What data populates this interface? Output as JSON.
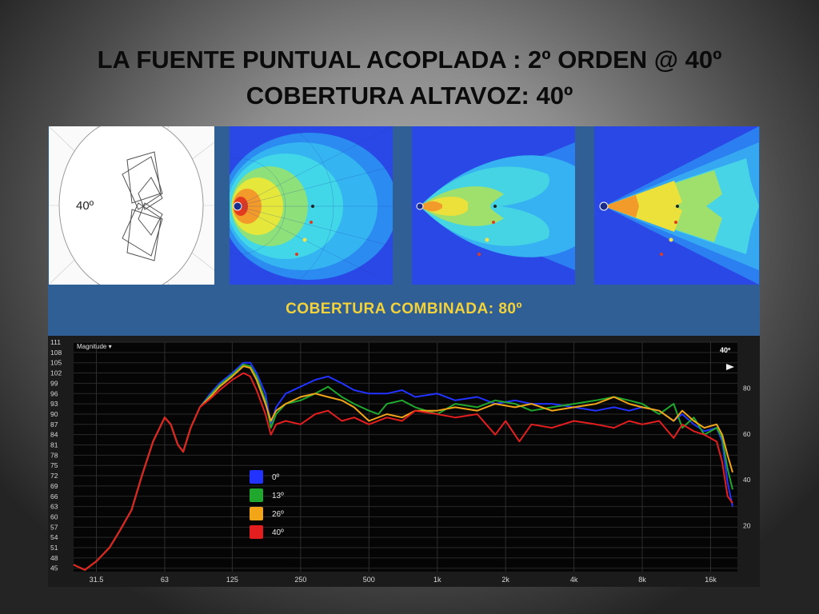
{
  "slide": {
    "title_line1": "LA FUENTE PUNTUAL ACOPLADA : 2º ORDEN @ 40º",
    "title_line2": "COBERTURA ALTAVOZ: 40º",
    "diagram_angle_label": "40º",
    "combined_coverage_label": "COBERTURA COMBINADA: 80º",
    "colors": {
      "panel_bg": "#2f5f94",
      "combined_text": "#f3d23a",
      "title_text": "#0b0b0b"
    }
  },
  "chart_data": {
    "type": "line",
    "title": "",
    "panel_label": "Magnitude ▾",
    "corner_label": "40º",
    "xlabel": "",
    "ylabel": "",
    "x_scale": "log",
    "xlim": [
      25,
      21000
    ],
    "ylim": [
      44,
      111
    ],
    "x_ticks": [
      "31.5",
      "63",
      "125",
      "250",
      "500",
      "1k",
      "2k",
      "4k",
      "8k",
      "16k"
    ],
    "x_tick_values": [
      31.5,
      63,
      125,
      250,
      500,
      1000,
      2000,
      4000,
      8000,
      16000
    ],
    "y_ticks": [
      "111",
      "108",
      "105",
      "102",
      "99",
      "96",
      "93",
      "90",
      "87",
      "84",
      "81",
      "78",
      "75",
      "72",
      "69",
      "66",
      "63",
      "60",
      "57",
      "54",
      "51",
      "48",
      "45"
    ],
    "y_tick_values": [
      111,
      108,
      105,
      102,
      99,
      96,
      93,
      90,
      87,
      84,
      81,
      78,
      75,
      72,
      69,
      66,
      63,
      60,
      57,
      54,
      51,
      48,
      45
    ],
    "right_axis_ticks": [
      "80",
      "60",
      "40",
      "20"
    ],
    "right_axis_values": [
      80,
      60,
      40,
      20
    ],
    "right_axis_range": [
      0,
      100
    ],
    "grid": true,
    "legend_position": "lower-left",
    "series": [
      {
        "name": "0º",
        "color": "#2233ff",
        "points": [
          [
            25,
            46
          ],
          [
            28,
            44.5
          ],
          [
            31.5,
            47
          ],
          [
            36,
            51
          ],
          [
            40,
            56
          ],
          [
            45,
            62
          ],
          [
            50,
            72
          ],
          [
            56,
            82
          ],
          [
            63,
            89
          ],
          [
            67,
            87
          ],
          [
            72,
            81
          ],
          [
            76,
            79
          ],
          [
            82,
            86
          ],
          [
            90,
            92
          ],
          [
            100,
            96
          ],
          [
            110,
            99
          ],
          [
            125,
            102
          ],
          [
            140,
            105
          ],
          [
            150,
            105
          ],
          [
            160,
            102
          ],
          [
            175,
            96
          ],
          [
            185,
            87
          ],
          [
            195,
            92
          ],
          [
            215,
            96
          ],
          [
            250,
            98
          ],
          [
            290,
            100
          ],
          [
            330,
            101
          ],
          [
            380,
            99
          ],
          [
            430,
            97
          ],
          [
            500,
            96
          ],
          [
            600,
            96
          ],
          [
            700,
            97
          ],
          [
            800,
            95
          ],
          [
            1000,
            96
          ],
          [
            1200,
            94
          ],
          [
            1500,
            95
          ],
          [
            1800,
            93
          ],
          [
            2200,
            94
          ],
          [
            2600,
            93
          ],
          [
            3200,
            93
          ],
          [
            4000,
            92
          ],
          [
            5000,
            91
          ],
          [
            6000,
            92
          ],
          [
            7000,
            91
          ],
          [
            8000,
            92
          ],
          [
            9500,
            91
          ],
          [
            11000,
            88
          ],
          [
            12000,
            90
          ],
          [
            13500,
            87
          ],
          [
            15000,
            85
          ],
          [
            17000,
            86
          ],
          [
            18000,
            82
          ],
          [
            19000,
            70
          ],
          [
            20000,
            63
          ]
        ]
      },
      {
        "name": "13º",
        "color": "#1fa82d",
        "points": [
          [
            25,
            46
          ],
          [
            28,
            44.5
          ],
          [
            31.5,
            47
          ],
          [
            36,
            51
          ],
          [
            40,
            56
          ],
          [
            45,
            62
          ],
          [
            50,
            72
          ],
          [
            56,
            82
          ],
          [
            63,
            89
          ],
          [
            67,
            87
          ],
          [
            72,
            81
          ],
          [
            76,
            79
          ],
          [
            82,
            86
          ],
          [
            90,
            92
          ],
          [
            100,
            95.5
          ],
          [
            110,
            98.5
          ],
          [
            125,
            101.5
          ],
          [
            140,
            104.5
          ],
          [
            150,
            104
          ],
          [
            160,
            101
          ],
          [
            175,
            94
          ],
          [
            185,
            86
          ],
          [
            195,
            90
          ],
          [
            215,
            93
          ],
          [
            250,
            94
          ],
          [
            290,
            96
          ],
          [
            330,
            98
          ],
          [
            380,
            95
          ],
          [
            430,
            93
          ],
          [
            500,
            91
          ],
          [
            550,
            90
          ],
          [
            600,
            93
          ],
          [
            700,
            94
          ],
          [
            800,
            92
          ],
          [
            1000,
            90
          ],
          [
            1200,
            93
          ],
          [
            1500,
            92
          ],
          [
            1800,
            94
          ],
          [
            2200,
            93
          ],
          [
            2600,
            91
          ],
          [
            3200,
            92
          ],
          [
            4000,
            93
          ],
          [
            5000,
            94
          ],
          [
            6000,
            95
          ],
          [
            7000,
            94
          ],
          [
            8000,
            93
          ],
          [
            9500,
            90
          ],
          [
            11000,
            93
          ],
          [
            12000,
            86
          ],
          [
            13500,
            89
          ],
          [
            15000,
            84
          ],
          [
            17000,
            86
          ],
          [
            18000,
            83
          ],
          [
            19000,
            74
          ],
          [
            20000,
            68
          ]
        ]
      },
      {
        "name": "26º",
        "color": "#f2a516",
        "points": [
          [
            25,
            46
          ],
          [
            28,
            44.5
          ],
          [
            31.5,
            47
          ],
          [
            36,
            51
          ],
          [
            40,
            56
          ],
          [
            45,
            62
          ],
          [
            50,
            72
          ],
          [
            56,
            82
          ],
          [
            63,
            89
          ],
          [
            67,
            87
          ],
          [
            72,
            81
          ],
          [
            76,
            79
          ],
          [
            82,
            86
          ],
          [
            90,
            92
          ],
          [
            100,
            95
          ],
          [
            110,
            98
          ],
          [
            125,
            101
          ],
          [
            140,
            104
          ],
          [
            150,
            103.5
          ],
          [
            160,
            100
          ],
          [
            175,
            93
          ],
          [
            185,
            88
          ],
          [
            195,
            91
          ],
          [
            215,
            93
          ],
          [
            250,
            95
          ],
          [
            290,
            96
          ],
          [
            330,
            95
          ],
          [
            380,
            94
          ],
          [
            430,
            92
          ],
          [
            500,
            88
          ],
          [
            600,
            90
          ],
          [
            700,
            89
          ],
          [
            800,
            91
          ],
          [
            1000,
            91
          ],
          [
            1200,
            92
          ],
          [
            1500,
            91
          ],
          [
            1800,
            93
          ],
          [
            2200,
            92
          ],
          [
            2600,
            93
          ],
          [
            3200,
            91
          ],
          [
            4000,
            92
          ],
          [
            5000,
            93
          ],
          [
            6000,
            95
          ],
          [
            7000,
            93
          ],
          [
            8000,
            92
          ],
          [
            9500,
            91
          ],
          [
            11000,
            88
          ],
          [
            12000,
            91
          ],
          [
            13500,
            88
          ],
          [
            15000,
            86
          ],
          [
            17000,
            87
          ],
          [
            18000,
            84
          ],
          [
            19000,
            78
          ],
          [
            20000,
            73
          ]
        ]
      },
      {
        "name": "40º",
        "color": "#e41e1e",
        "points": [
          [
            25,
            46
          ],
          [
            28,
            44.5
          ],
          [
            31.5,
            47
          ],
          [
            36,
            51
          ],
          [
            40,
            56
          ],
          [
            45,
            62
          ],
          [
            50,
            72
          ],
          [
            56,
            82
          ],
          [
            63,
            89
          ],
          [
            67,
            87
          ],
          [
            72,
            81
          ],
          [
            76,
            79
          ],
          [
            82,
            86
          ],
          [
            90,
            92
          ],
          [
            100,
            94.5
          ],
          [
            110,
            97
          ],
          [
            125,
            100
          ],
          [
            140,
            102
          ],
          [
            150,
            101
          ],
          [
            160,
            97
          ],
          [
            175,
            90
          ],
          [
            185,
            84
          ],
          [
            195,
            87
          ],
          [
            215,
            88
          ],
          [
            250,
            87
          ],
          [
            290,
            90
          ],
          [
            330,
            91
          ],
          [
            380,
            88
          ],
          [
            430,
            89
          ],
          [
            500,
            87
          ],
          [
            600,
            89
          ],
          [
            700,
            88
          ],
          [
            800,
            91
          ],
          [
            1000,
            90
          ],
          [
            1200,
            89
          ],
          [
            1500,
            90
          ],
          [
            1800,
            84
          ],
          [
            2000,
            88
          ],
          [
            2300,
            82
          ],
          [
            2600,
            87
          ],
          [
            3200,
            86
          ],
          [
            4000,
            88
          ],
          [
            5000,
            87
          ],
          [
            6000,
            86
          ],
          [
            7000,
            88
          ],
          [
            8000,
            87
          ],
          [
            9500,
            88
          ],
          [
            11000,
            83
          ],
          [
            12000,
            87
          ],
          [
            13500,
            85
          ],
          [
            15000,
            84
          ],
          [
            17000,
            82
          ],
          [
            18000,
            76
          ],
          [
            19000,
            66
          ],
          [
            20000,
            64
          ]
        ]
      }
    ]
  }
}
